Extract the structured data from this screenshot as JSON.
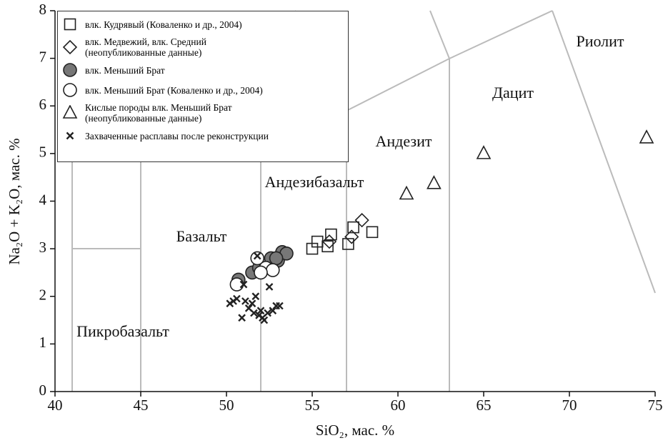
{
  "chart_data": {
    "type": "scatter",
    "xlabel": "SiO₂, мас. %",
    "ylabel": "Na₂O + K₂O, мас. %",
    "xlim": [
      40,
      75
    ],
    "xticks": [
      40,
      45,
      50,
      55,
      60,
      65,
      70,
      75
    ],
    "ylim": [
      0,
      8
    ],
    "yticks": [
      0,
      1,
      2,
      3,
      4,
      5,
      6,
      7,
      8
    ],
    "annotations": [
      "Риолит",
      "Дацит",
      "Андезит",
      "Андезибазальт",
      "Базальт",
      "Пикробазальт"
    ],
    "series": [
      {
        "name": "влк. Кудрявый (Коваленко и др., 2004)",
        "marker": "square",
        "color": "#222222",
        "fill": "none",
        "x": [
          55.0,
          55.3,
          55.9,
          56.1,
          57.1,
          57.4,
          58.5
        ],
        "values": [
          3.0,
          3.15,
          3.05,
          3.3,
          3.1,
          3.45,
          3.35
        ]
      },
      {
        "name": "влк. Медвежий, влк. Средний\n(неопубликованные данные)",
        "marker": "diamond",
        "color": "#222222",
        "fill": "none",
        "x": [
          57.9,
          57.3,
          56.0
        ],
        "values": [
          3.6,
          3.25,
          3.15
        ]
      },
      {
        "name": "влк. Меньший Брат",
        "marker": "circle",
        "color": "#222222",
        "fill": "#777777",
        "x": [
          50.7,
          51.5,
          51.9,
          52.6,
          53.0,
          53.25,
          53.5,
          52.9
        ],
        "values": [
          2.35,
          2.5,
          2.6,
          2.8,
          2.75,
          2.93,
          2.9,
          2.8
        ]
      },
      {
        "name": "влк. Меньший Брат  (Коваленко и др., 2004)",
        "marker": "circle",
        "color": "#222222",
        "fill": "#ffffff",
        "x": [
          50.6,
          51.8,
          52.3,
          52.7,
          52.0
        ],
        "values": [
          2.25,
          2.8,
          2.6,
          2.55,
          2.5
        ]
      },
      {
        "name": "Кислые породы влк. Меньший Брат\n(неопубликованные данные)",
        "marker": "triangle",
        "color": "#222222",
        "fill": "none",
        "x": [
          60.5,
          62.1,
          65.0,
          74.5
        ],
        "values": [
          4.15,
          4.37,
          5.0,
          5.33
        ]
      },
      {
        "name": "Захваченные расплавы после реконструкции",
        "marker": "x",
        "color": "#222222",
        "fill": "none",
        "x": [
          50.2,
          50.4,
          50.6,
          50.9,
          51.1,
          51.3,
          51.5,
          51.7,
          51.9,
          52.0,
          52.2,
          52.4,
          52.5,
          52.7,
          52.9,
          53.1,
          51.8,
          51.6,
          52.1,
          51.0
        ],
        "values": [
          1.85,
          1.9,
          1.95,
          1.55,
          1.9,
          1.75,
          1.85,
          2.0,
          1.6,
          1.7,
          1.5,
          1.65,
          2.2,
          1.7,
          1.8,
          1.8,
          2.85,
          1.65,
          1.55,
          2.25
        ]
      }
    ]
  }
}
